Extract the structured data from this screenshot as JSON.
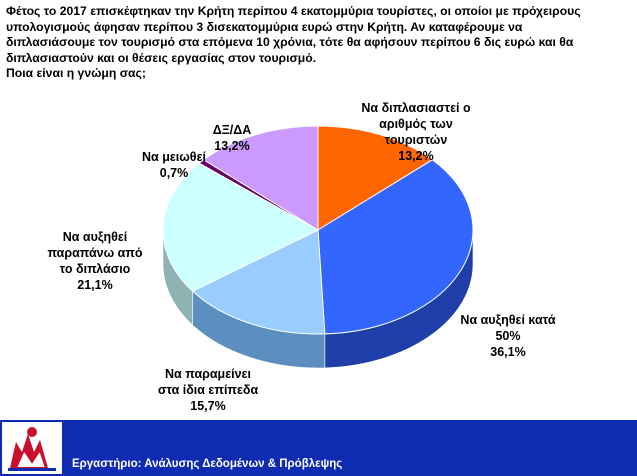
{
  "question_lines": [
    "Φέτος το 2017 επισκέφτηκαν την Κρήτη περίπου 4 εκατομμύρια τουρίστες, οι οποίοι με πρόχειρους",
    "υπολογισμούς άφησαν περίπου 3 δισεκατομμύρια ευρώ στην Κρήτη. Αν καταφέρουμε να",
    "διπλασιάσουμε τον τουρισμό στα επόμενα 10 χρόνια, τότε θα αφήσουν περίπου 6 δις ευρώ και θα",
    "διπλασιαστούν και οι θέσεις εργασίας στον τουρισμό.",
    "Ποια είναι η γνώμη σας;"
  ],
  "chart_data": {
    "type": "pie",
    "categories": [
      "Να διπλασιαστεί ο αριθμός των τουριστών",
      "Να αυξηθεί κατά 50%",
      "Να παραμείνει στα ίδια επίπεδα",
      "Να αυξηθεί παραπάνω από το διπλάσιο",
      "Να μειωθεί",
      "ΔΞ/ΔΑ"
    ],
    "label_lines": [
      [
        "Να διπλασιαστεί ο",
        "αριθμός των",
        "τουριστών"
      ],
      [
        "Να αυξηθεί κατά",
        "50%"
      ],
      [
        "Να παραμείνει",
        "στα ίδια επίπεδα"
      ],
      [
        "Να αυξηθεί",
        "παραπάνω από",
        "το διπλάσιο"
      ],
      [
        "Να μειωθεί"
      ],
      [
        "ΔΞ/ΔΑ"
      ]
    ],
    "values": [
      13.2,
      36.1,
      15.7,
      21.1,
      0.7,
      13.2
    ],
    "value_labels": [
      "13,2%",
      "36,1%",
      "15,7%",
      "21,1%",
      "0,7%",
      "13,2%"
    ],
    "colors": [
      "#ff6600",
      "#3366ff",
      "#99ccff",
      "#ccffff",
      "#660066",
      "#cc99ff"
    ],
    "side_colors": [
      "#b34700",
      "#1f3ea8",
      "#5c8fbf",
      "#8fb3b3",
      "#3d003d",
      "#8a66b3"
    ],
    "legend": "none",
    "start_angle_deg": 0,
    "direction": "clockwise"
  },
  "footer": {
    "title": "Εργαστήριο: Ανάλυσης Δεδομένων & Πρόβλεψης"
  }
}
